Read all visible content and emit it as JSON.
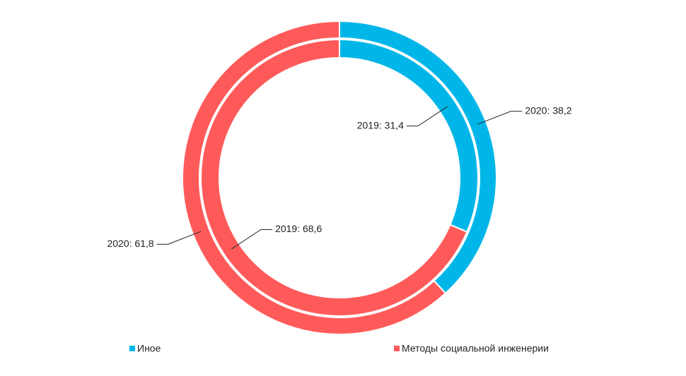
{
  "chart_data": {
    "type": "donut",
    "categories": [
      "Иное",
      "Методы социальной инженерии"
    ],
    "colors": [
      "#00b6e8",
      "#ff5a5a"
    ],
    "series": [
      {
        "values": [
          38.2,
          61.8
        ],
        "value_labels": [
          "2020: 38,2",
          "2020: 61,8"
        ]
      },
      {
        "values": [
          31.4,
          68.6
        ],
        "value_labels": [
          "2019: 31,4",
          "2019: 68,6"
        ]
      }
    ]
  }
}
